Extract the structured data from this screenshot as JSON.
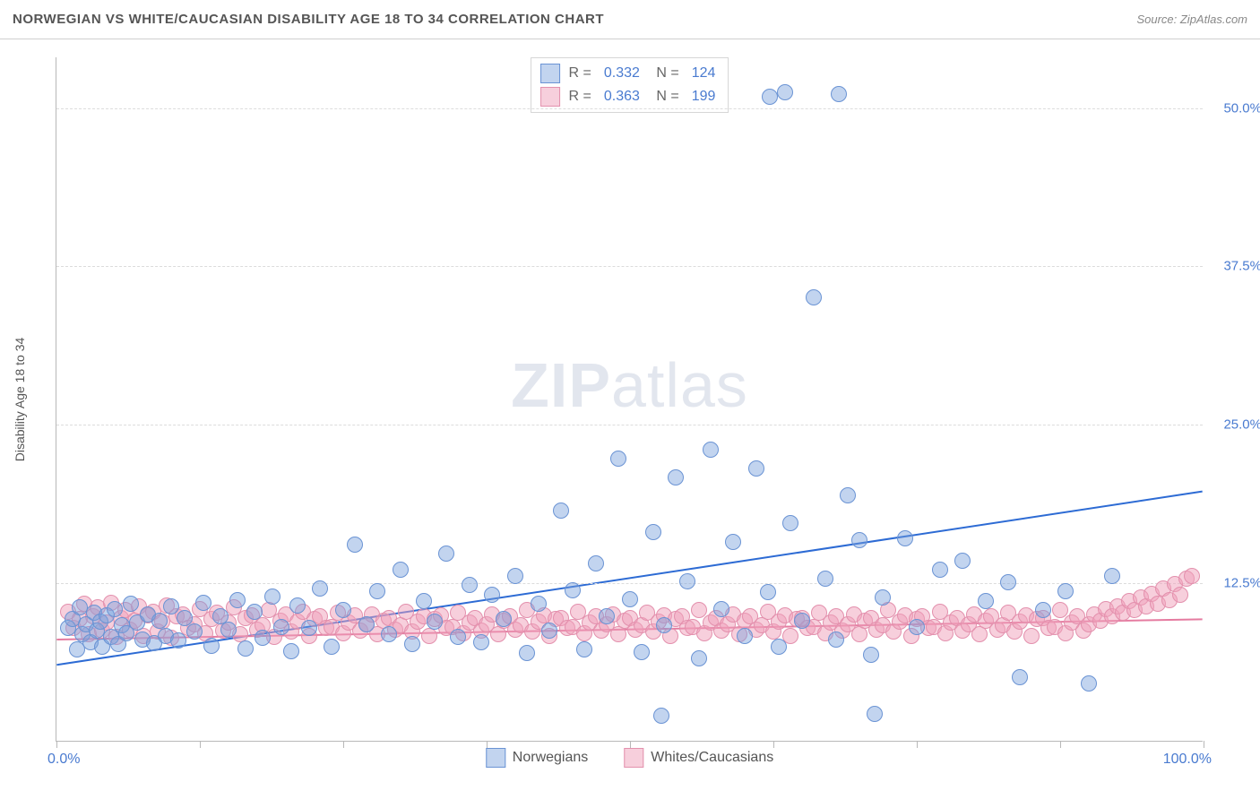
{
  "header": {
    "title": "NORWEGIAN VS WHITE/CAUCASIAN DISABILITY AGE 18 TO 34 CORRELATION CHART",
    "source": "Source: ZipAtlas.com"
  },
  "chart": {
    "type": "scatter",
    "y_axis_label": "Disability Age 18 to 34",
    "xlim": [
      0,
      100
    ],
    "ylim": [
      0,
      54
    ],
    "x_tick_positions": [
      0,
      12.5,
      25,
      37.5,
      50,
      62.5,
      75,
      87.5,
      100
    ],
    "x_tick_labels": {
      "start": "0.0%",
      "end": "100.0%"
    },
    "y_grid": [
      {
        "value": 12.5,
        "label": "12.5%"
      },
      {
        "value": 25.0,
        "label": "25.0%"
      },
      {
        "value": 37.5,
        "label": "37.5%"
      },
      {
        "value": 50.0,
        "label": "50.0%"
      }
    ],
    "colors": {
      "axis_label": "#4a7bd0",
      "grid": "#dcdcdc",
      "background": "#ffffff",
      "text": "#555555"
    },
    "marker_radius": 9,
    "marker_stroke_width": 1,
    "series": [
      {
        "name": "Norwegians",
        "fill_color": "rgba(120,160,220,0.45)",
        "stroke_color": "#6a93d4",
        "trend_color": "#2d6bd4",
        "trend_width": 2,
        "R": "0.332",
        "N": "124",
        "trend": {
          "x1": 0,
          "y1": 6.0,
          "x2": 100,
          "y2": 19.7
        },
        "points": [
          [
            1,
            8.9
          ],
          [
            1.4,
            9.6
          ],
          [
            1.8,
            7.2
          ],
          [
            2,
            10.5
          ],
          [
            2.3,
            8.4
          ],
          [
            2.6,
            9.2
          ],
          [
            3,
            7.8
          ],
          [
            3.3,
            10.1
          ],
          [
            3.5,
            8.7
          ],
          [
            3.8,
            9.4
          ],
          [
            4,
            7.4
          ],
          [
            4.4,
            9.9
          ],
          [
            4.8,
            8.2
          ],
          [
            5.1,
            10.4
          ],
          [
            5.4,
            7.6
          ],
          [
            5.7,
            9.1
          ],
          [
            6.1,
            8.5
          ],
          [
            6.5,
            10.8
          ],
          [
            7,
            9.3
          ],
          [
            7.5,
            8.0
          ],
          [
            8,
            10.0
          ],
          [
            8.5,
            7.7
          ],
          [
            9,
            9.5
          ],
          [
            9.5,
            8.3
          ],
          [
            10,
            10.6
          ],
          [
            10.6,
            7.9
          ],
          [
            11.2,
            9.7
          ],
          [
            12,
            8.6
          ],
          [
            12.8,
            10.9
          ],
          [
            13.5,
            7.5
          ],
          [
            14.3,
            9.8
          ],
          [
            15,
            8.8
          ],
          [
            15.8,
            11.1
          ],
          [
            16.5,
            7.3
          ],
          [
            17.3,
            10.2
          ],
          [
            18,
            8.1
          ],
          [
            18.8,
            11.4
          ],
          [
            19.6,
            9.0
          ],
          [
            20.5,
            7.1
          ],
          [
            21,
            10.7
          ],
          [
            22,
            8.9
          ],
          [
            23,
            12.0
          ],
          [
            24,
            7.4
          ],
          [
            25,
            10.3
          ],
          [
            26,
            15.5
          ],
          [
            27,
            9.2
          ],
          [
            28,
            11.8
          ],
          [
            29,
            8.4
          ],
          [
            30,
            13.5
          ],
          [
            31,
            7.6
          ],
          [
            32,
            11.0
          ],
          [
            33,
            9.4
          ],
          [
            34,
            14.8
          ],
          [
            35,
            8.2
          ],
          [
            36,
            12.3
          ],
          [
            37,
            7.8
          ],
          [
            38,
            11.5
          ],
          [
            39,
            9.6
          ],
          [
            40,
            13.0
          ],
          [
            41,
            6.9
          ],
          [
            42,
            10.8
          ],
          [
            43,
            8.7
          ],
          [
            44,
            18.2
          ],
          [
            45,
            11.9
          ],
          [
            46,
            7.2
          ],
          [
            47,
            14.0
          ],
          [
            48,
            9.8
          ],
          [
            49,
            22.3
          ],
          [
            50,
            11.2
          ],
          [
            51,
            7.0
          ],
          [
            52,
            16.5
          ],
          [
            52.7,
            2.0
          ],
          [
            53,
            9.1
          ],
          [
            54,
            20.8
          ],
          [
            55,
            12.6
          ],
          [
            56,
            6.5
          ],
          [
            57,
            23.0
          ],
          [
            58,
            10.4
          ],
          [
            59,
            15.7
          ],
          [
            60,
            8.3
          ],
          [
            61,
            21.5
          ],
          [
            62,
            11.7
          ],
          [
            62.2,
            50.8
          ],
          [
            63,
            7.4
          ],
          [
            63.5,
            51.2
          ],
          [
            64,
            17.2
          ],
          [
            65,
            9.5
          ],
          [
            66,
            35.0
          ],
          [
            67,
            12.8
          ],
          [
            68,
            8.0
          ],
          [
            68.2,
            51.0
          ],
          [
            69,
            19.4
          ],
          [
            70,
            15.8
          ],
          [
            71,
            6.8
          ],
          [
            71.3,
            2.1
          ],
          [
            72,
            11.3
          ],
          [
            74,
            16.0
          ],
          [
            75,
            9.0
          ],
          [
            77,
            13.5
          ],
          [
            79,
            14.2
          ],
          [
            81,
            11.0
          ],
          [
            83,
            12.5
          ],
          [
            84,
            5.0
          ],
          [
            86,
            10.3
          ],
          [
            88,
            11.8
          ],
          [
            90,
            4.5
          ],
          [
            92,
            13.0
          ]
        ]
      },
      {
        "name": "Whites/Caucasians",
        "fill_color": "rgba(240,160,185,0.5)",
        "stroke_color": "#e390ad",
        "trend_color": "#e57ba0",
        "trend_width": 2,
        "R": "0.363",
        "N": "199",
        "trend": {
          "x1": 0,
          "y1": 8.0,
          "x2": 100,
          "y2": 9.6
        },
        "points": [
          [
            1,
            10.2
          ],
          [
            1.5,
            8.9
          ],
          [
            2,
            9.6
          ],
          [
            2.4,
            10.8
          ],
          [
            2.8,
            8.4
          ],
          [
            3.2,
            9.8
          ],
          [
            3.6,
            10.5
          ],
          [
            4,
            8.7
          ],
          [
            4.4,
            9.3
          ],
          [
            4.8,
            10.9
          ],
          [
            5.2,
            8.2
          ],
          [
            5.6,
            9.7
          ],
          [
            6,
            10.3
          ],
          [
            6.4,
            8.8
          ],
          [
            6.8,
            9.5
          ],
          [
            7.2,
            10.6
          ],
          [
            7.6,
            8.3
          ],
          [
            8,
            9.9
          ],
          [
            8.4,
            10.2
          ],
          [
            8.8,
            8.6
          ],
          [
            9.2,
            9.4
          ],
          [
            9.6,
            10.7
          ],
          [
            10,
            8.1
          ],
          [
            10.5,
            9.8
          ],
          [
            11,
            10.0
          ],
          [
            11.5,
            8.9
          ],
          [
            12,
            9.2
          ],
          [
            12.5,
            10.4
          ],
          [
            13,
            8.5
          ],
          [
            13.5,
            9.6
          ],
          [
            14,
            10.1
          ],
          [
            14.5,
            8.7
          ],
          [
            15,
            9.3
          ],
          [
            15.5,
            10.5
          ],
          [
            16,
            8.4
          ],
          [
            16.5,
            9.7
          ],
          [
            17,
            9.9
          ],
          [
            17.5,
            8.8
          ],
          [
            18,
            9.1
          ],
          [
            18.5,
            10.3
          ],
          [
            19,
            8.2
          ],
          [
            19.5,
            9.5
          ],
          [
            20,
            10.0
          ],
          [
            20.5,
            8.6
          ],
          [
            21,
            9.4
          ],
          [
            21.5,
            10.2
          ],
          [
            22,
            8.3
          ],
          [
            22.5,
            9.6
          ],
          [
            23,
            9.8
          ],
          [
            23.5,
            8.9
          ],
          [
            24,
            9.0
          ],
          [
            24.5,
            10.1
          ],
          [
            25,
            8.5
          ],
          [
            25.5,
            9.3
          ],
          [
            26,
            9.9
          ],
          [
            26.5,
            8.7
          ],
          [
            27,
            9.2
          ],
          [
            27.5,
            10.0
          ],
          [
            28,
            8.4
          ],
          [
            28.5,
            9.5
          ],
          [
            29,
            9.7
          ],
          [
            29.5,
            8.8
          ],
          [
            30,
            9.1
          ],
          [
            30.5,
            10.2
          ],
          [
            31,
            8.6
          ],
          [
            31.5,
            9.4
          ],
          [
            32,
            9.8
          ],
          [
            32.5,
            8.3
          ],
          [
            33,
            9.6
          ],
          [
            33.5,
            9.9
          ],
          [
            34,
            8.9
          ],
          [
            34.5,
            9.0
          ],
          [
            35,
            10.1
          ],
          [
            35.5,
            8.5
          ],
          [
            36,
            9.3
          ],
          [
            36.5,
            9.7
          ],
          [
            37,
            8.7
          ],
          [
            37.5,
            9.2
          ],
          [
            38,
            10.0
          ],
          [
            38.5,
            8.4
          ],
          [
            39,
            9.5
          ],
          [
            39.5,
            9.8
          ],
          [
            40,
            8.8
          ],
          [
            40.5,
            9.1
          ],
          [
            41,
            10.3
          ],
          [
            41.5,
            8.6
          ],
          [
            42,
            9.4
          ],
          [
            42.5,
            9.9
          ],
          [
            43,
            8.3
          ],
          [
            43.5,
            9.6
          ],
          [
            44,
            9.7
          ],
          [
            44.5,
            8.9
          ],
          [
            45,
            9.0
          ],
          [
            45.5,
            10.2
          ],
          [
            46,
            8.5
          ],
          [
            46.5,
            9.3
          ],
          [
            47,
            9.8
          ],
          [
            47.5,
            8.7
          ],
          [
            48,
            9.2
          ],
          [
            48.5,
            10.0
          ],
          [
            49,
            8.4
          ],
          [
            49.5,
            9.5
          ],
          [
            50,
            9.7
          ],
          [
            50.5,
            8.8
          ],
          [
            51,
            9.1
          ],
          [
            51.5,
            10.1
          ],
          [
            52,
            8.6
          ],
          [
            52.5,
            9.4
          ],
          [
            53,
            9.9
          ],
          [
            53.5,
            8.3
          ],
          [
            54,
            9.6
          ],
          [
            54.5,
            9.8
          ],
          [
            55,
            8.9
          ],
          [
            55.5,
            9.0
          ],
          [
            56,
            10.3
          ],
          [
            56.5,
            8.5
          ],
          [
            57,
            9.3
          ],
          [
            57.5,
            9.7
          ],
          [
            58,
            8.7
          ],
          [
            58.5,
            9.2
          ],
          [
            59,
            10.0
          ],
          [
            59.5,
            8.4
          ],
          [
            60,
            9.5
          ],
          [
            60.5,
            9.8
          ],
          [
            61,
            8.8
          ],
          [
            61.5,
            9.1
          ],
          [
            62,
            10.2
          ],
          [
            62.5,
            8.6
          ],
          [
            63,
            9.4
          ],
          [
            63.5,
            9.9
          ],
          [
            64,
            8.3
          ],
          [
            64.5,
            9.6
          ],
          [
            65,
            9.7
          ],
          [
            65.5,
            8.9
          ],
          [
            66,
            9.0
          ],
          [
            66.5,
            10.1
          ],
          [
            67,
            8.5
          ],
          [
            67.5,
            9.3
          ],
          [
            68,
            9.8
          ],
          [
            68.5,
            8.7
          ],
          [
            69,
            9.2
          ],
          [
            69.5,
            10.0
          ],
          [
            70,
            8.4
          ],
          [
            70.5,
            9.5
          ],
          [
            71,
            9.7
          ],
          [
            71.5,
            8.8
          ],
          [
            72,
            9.1
          ],
          [
            72.5,
            10.3
          ],
          [
            73,
            8.6
          ],
          [
            73.5,
            9.4
          ],
          [
            74,
            9.9
          ],
          [
            74.5,
            8.3
          ],
          [
            75,
            9.6
          ],
          [
            75.5,
            9.8
          ],
          [
            76,
            8.9
          ],
          [
            76.5,
            9.0
          ],
          [
            77,
            10.2
          ],
          [
            77.5,
            8.5
          ],
          [
            78,
            9.3
          ],
          [
            78.5,
            9.7
          ],
          [
            79,
            8.7
          ],
          [
            79.5,
            9.2
          ],
          [
            80,
            10.0
          ],
          [
            80.5,
            8.4
          ],
          [
            81,
            9.5
          ],
          [
            81.5,
            9.8
          ],
          [
            82,
            8.8
          ],
          [
            82.5,
            9.1
          ],
          [
            83,
            10.1
          ],
          [
            83.5,
            8.6
          ],
          [
            84,
            9.4
          ],
          [
            84.5,
            9.9
          ],
          [
            85,
            8.3
          ],
          [
            85.5,
            9.6
          ],
          [
            86,
            9.7
          ],
          [
            86.5,
            8.9
          ],
          [
            87,
            9.0
          ],
          [
            87.5,
            10.3
          ],
          [
            88,
            8.5
          ],
          [
            88.5,
            9.3
          ],
          [
            89,
            9.8
          ],
          [
            89.5,
            8.7
          ],
          [
            90,
            9.2
          ],
          [
            90.5,
            10.0
          ],
          [
            91,
            9.5
          ],
          [
            91.5,
            10.4
          ],
          [
            92,
            9.8
          ],
          [
            92.5,
            10.6
          ],
          [
            93,
            10.1
          ],
          [
            93.5,
            11.0
          ],
          [
            94,
            10.3
          ],
          [
            94.5,
            11.3
          ],
          [
            95,
            10.6
          ],
          [
            95.5,
            11.6
          ],
          [
            96,
            10.8
          ],
          [
            96.5,
            12.0
          ],
          [
            97,
            11.1
          ],
          [
            97.5,
            12.4
          ],
          [
            98,
            11.5
          ],
          [
            98.5,
            12.8
          ],
          [
            99,
            13.0
          ]
        ]
      }
    ],
    "watermark": {
      "zip": "ZIP",
      "atlas": "atlas"
    },
    "bottom_legend": [
      {
        "label": "Norwegians",
        "series_index": 0
      },
      {
        "label": "Whites/Caucasians",
        "series_index": 1
      }
    ]
  }
}
